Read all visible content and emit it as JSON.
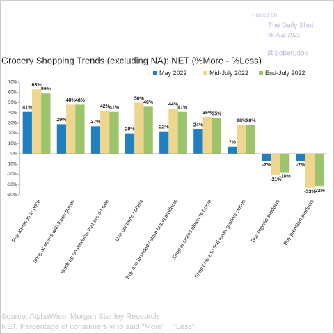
{
  "posted_on": "Posted on",
  "site": "The Daily Shot",
  "date": "08-Aug-2022",
  "handle": "@SoberLook",
  "chart_data": {
    "type": "bar",
    "title": "Grocery Shopping Trends (excluding NA): NET (%More - %Less)",
    "categories": [
      "Pay attention to price",
      "Shop at stores with lower prices",
      "Stock up on products that are on sale",
      "Use coupons / offers",
      "Buy non-branded / store brand products",
      "Shop at stores closer to home",
      "Shop online to find lower grocery prices",
      "Buy organic products",
      "Buy premium products"
    ],
    "series": [
      {
        "name": "May 2022",
        "color": "#1f7fbf",
        "values": [
          41,
          29,
          27,
          20,
          22,
          24,
          7,
          -7,
          -7
        ],
        "value_labels": [
          "41%",
          "29%",
          "27%",
          "20%",
          "22%",
          "24%",
          "7%",
          "-7%",
          "-7%"
        ]
      },
      {
        "name": "Mid-July 2022",
        "color": "#efd58e",
        "values": [
          63,
          48,
          42,
          50,
          44,
          36,
          28,
          -21,
          -33
        ],
        "value_labels": [
          "63%",
          "48%",
          "42%",
          "50%",
          "44%",
          "36%",
          "28%",
          "-21%",
          "-33%"
        ]
      },
      {
        "name": "End-July 2022",
        "color": "#9cc56b",
        "values": [
          59,
          48,
          41,
          46,
          41,
          35,
          28,
          -18,
          -32
        ],
        "value_labels": [
          "59%",
          "48%",
          "41%",
          "46%",
          "41%",
          "35%",
          "28%",
          "-18%",
          "-32%"
        ]
      }
    ],
    "ylim": [
      -40,
      70
    ],
    "yticks": [
      {
        "value": -40,
        "label": "-40%"
      },
      {
        "value": -30,
        "label": "-30%"
      },
      {
        "value": -20,
        "label": "-20%"
      },
      {
        "value": -10,
        "label": "-10%"
      },
      {
        "value": 0,
        "label": "0%"
      },
      {
        "value": 10,
        "label": "10%"
      },
      {
        "value": 20,
        "label": "20%"
      },
      {
        "value": 30,
        "label": "30%"
      },
      {
        "value": 40,
        "label": "40%"
      },
      {
        "value": 50,
        "label": "50%"
      },
      {
        "value": 60,
        "label": "60%"
      },
      {
        "value": 70,
        "label": "70%"
      }
    ],
    "legend": "top-right",
    "source": "Source: AlphaWise, Morgan Stanley Research",
    "note": "NET: Percentage of consumers who said \"More\"    \"Less\""
  }
}
